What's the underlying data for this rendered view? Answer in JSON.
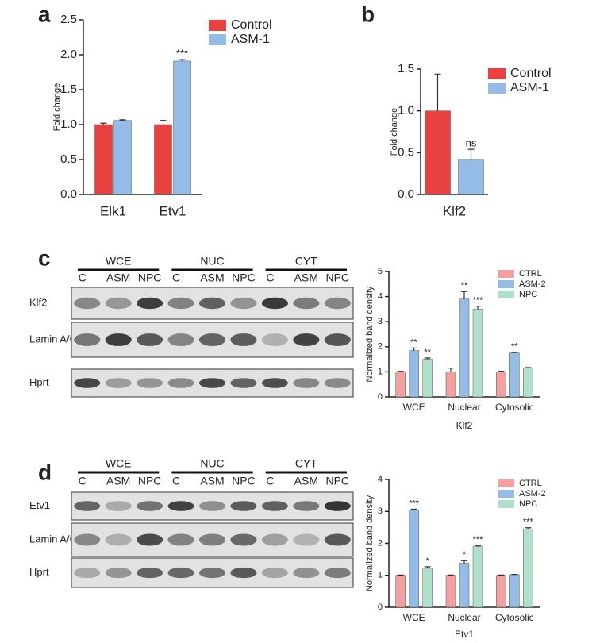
{
  "panel_labels": [
    "a",
    "b",
    "c",
    "d"
  ],
  "blots": [
    {
      "groups": [
        "WCE",
        "NUC",
        "CYT"
      ],
      "lanes": [
        "C",
        "ASM",
        "NPC"
      ],
      "rows": [
        "Klf2",
        "Lamin A/C",
        "Hprt"
      ]
    },
    {
      "groups": [
        "WCE",
        "NUC",
        "CYT"
      ],
      "lanes": [
        "C",
        "ASM",
        "NPC"
      ],
      "rows": [
        "Etv1",
        "Lamin A/C",
        "Hprt"
      ]
    }
  ],
  "chart_data": [
    {
      "type": "bar",
      "y_label": "Fold change",
      "categories": [
        "Elk1",
        "Etv1"
      ],
      "series": [
        {
          "name": "Control",
          "color": "#e8413f",
          "values": [
            1.0,
            1.0
          ],
          "errors": [
            0.02,
            0.06
          ],
          "sig": [
            null,
            null
          ]
        },
        {
          "name": "ASM-1",
          "color": "#94bce6",
          "values": [
            1.06,
            1.91
          ],
          "errors": [
            0.01,
            0.02
          ],
          "sig": [
            null,
            "***"
          ]
        }
      ],
      "ylim": [
        0,
        2.5
      ],
      "yticks": [
        {
          "value": 0,
          "label": "0.0"
        },
        {
          "value": 0.5,
          "label": "0.5"
        },
        {
          "value": 1,
          "label": "1.0"
        },
        {
          "value": 1.5,
          "label": "1.5"
        },
        {
          "value": 2,
          "label": "2.0"
        },
        {
          "value": 2.5,
          "label": "2.5"
        }
      ]
    },
    {
      "type": "bar",
      "y_label": "Fold change",
      "categories": [
        "Klf2"
      ],
      "series": [
        {
          "name": "Control",
          "color": "#e8413f",
          "values": [
            1.0
          ],
          "errors": [
            0.44
          ],
          "sig": [
            null
          ]
        },
        {
          "name": "ASM-1",
          "color": "#94bce6",
          "values": [
            0.42
          ],
          "errors": [
            0.12
          ],
          "sig": [
            "ns"
          ]
        }
      ],
      "ylim": [
        0,
        1.5
      ],
      "yticks": [
        {
          "value": 0,
          "label": "0.0"
        },
        {
          "value": 0.5,
          "label": "0.5"
        },
        {
          "value": 1,
          "label": "1.0"
        },
        {
          "value": 1.5,
          "label": "1.5"
        }
      ]
    },
    {
      "type": "bar",
      "y_label": "Normalized band density",
      "x_label": "Klf2",
      "categories": [
        "WCE",
        "Nuclear",
        "Cytosolic"
      ],
      "series": [
        {
          "name": "CTRL",
          "color": "#f4a0a0",
          "values": [
            1,
            1,
            1
          ],
          "errors": [
            0.02,
            0.15,
            0.02
          ],
          "sig": [
            null,
            null,
            null
          ]
        },
        {
          "name": "ASM-2",
          "color": "#94bce6",
          "values": [
            1.85,
            3.9,
            1.75
          ],
          "errors": [
            0.1,
            0.3,
            0.03
          ],
          "sig": [
            "**",
            "**",
            "**"
          ]
        },
        {
          "name": "NPC",
          "color": "#b0e0cc",
          "values": [
            1.5,
            3.5,
            1.15
          ],
          "errors": [
            0.05,
            0.12,
            0.02
          ],
          "sig": [
            "**",
            "***",
            null
          ]
        }
      ],
      "ylim": [
        0,
        5
      ],
      "yticks": [
        0,
        1,
        2,
        3,
        4,
        5
      ]
    },
    {
      "type": "bar",
      "y_label": "Normalized band density",
      "x_label": "Etv1",
      "categories": [
        "WCE",
        "Nuclear",
        "Cytosolic"
      ],
      "series": [
        {
          "name": "CTRL",
          "color": "#f4a0a0",
          "values": [
            1,
            1,
            1
          ],
          "errors": [
            0.01,
            0.01,
            0.01
          ],
          "sig": [
            null,
            null,
            null
          ]
        },
        {
          "name": "ASM-2",
          "color": "#94bce6",
          "values": [
            3.05,
            1.38,
            1.02
          ],
          "errors": [
            0.02,
            0.08,
            0.01
          ],
          "sig": [
            "***",
            "*",
            null
          ]
        },
        {
          "name": "NPC",
          "color": "#b0e0cc",
          "values": [
            1.22,
            1.9,
            2.45
          ],
          "errors": [
            0.05,
            0.03,
            0.04
          ],
          "sig": [
            "*",
            "***",
            "***"
          ]
        }
      ],
      "ylim": [
        0,
        4
      ],
      "yticks": [
        0,
        1,
        2,
        3,
        4
      ]
    }
  ]
}
